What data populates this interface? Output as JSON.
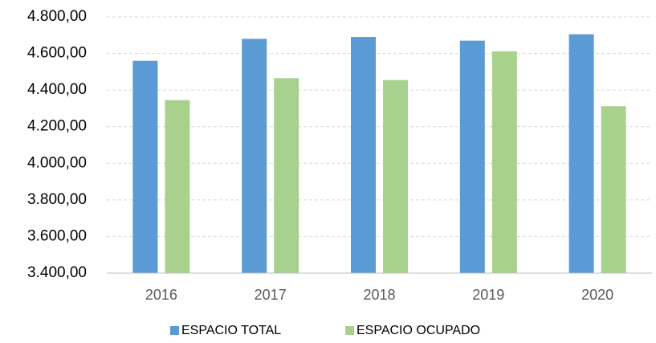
{
  "chart_data": {
    "type": "bar",
    "categories": [
      "2016",
      "2017",
      "2018",
      "2019",
      "2020"
    ],
    "series": [
      {
        "name": "ESPACIO TOTAL",
        "color": "#5b9bd5",
        "values": [
          4560,
          4680,
          4690,
          4670,
          4705
        ]
      },
      {
        "name": "ESPACIO OCUPADO",
        "color": "#a9d18e",
        "values": [
          4345,
          4465,
          4455,
          4612,
          4312
        ]
      }
    ],
    "ylim": [
      3400,
      4800
    ],
    "yticks": [
      {
        "value": 3400,
        "label": "3.400,00"
      },
      {
        "value": 3600,
        "label": "3.600,00"
      },
      {
        "value": 3800,
        "label": "3.800,00"
      },
      {
        "value": 4000,
        "label": "4.000,00"
      },
      {
        "value": 4200,
        "label": "4.200,00"
      },
      {
        "value": 4400,
        "label": "4.400,00"
      },
      {
        "value": 4600,
        "label": "4.600,00"
      },
      {
        "value": 4800,
        "label": "4.800,00"
      }
    ],
    "grid": true,
    "legend": "bottom"
  }
}
